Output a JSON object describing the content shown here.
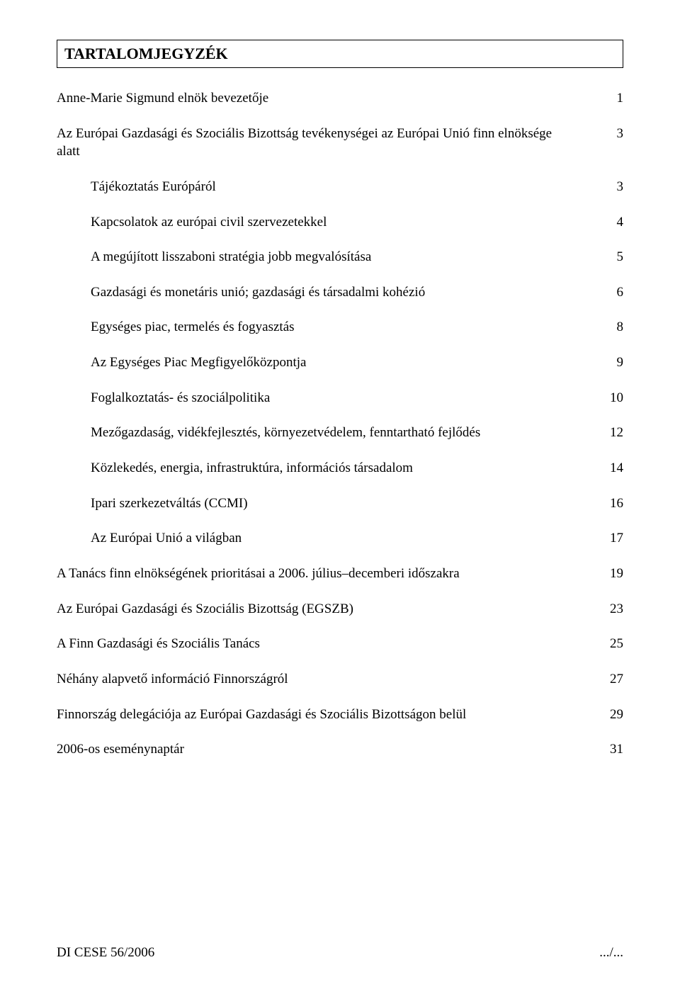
{
  "title": "TARTALOMJEGYZÉK",
  "toc": [
    {
      "label": "Anne-Marie Sigmund elnök bevezetője",
      "page": "1",
      "indent": 0
    },
    {
      "label": "Az Európai Gazdasági és Szociális Bizottság tevékenységei az Európai Unió finn elnöksége alatt",
      "page": "3",
      "indent": 0
    },
    {
      "label": "Tájékoztatás Európáról",
      "page": "3",
      "indent": 1
    },
    {
      "label": "Kapcsolatok az európai civil szervezetekkel",
      "page": "4",
      "indent": 1
    },
    {
      "label": "A megújított lisszaboni stratégia jobb megvalósítása",
      "page": "5",
      "indent": 1
    },
    {
      "label": "Gazdasági és monetáris unió; gazdasági és társadalmi kohézió",
      "page": "6",
      "indent": 1
    },
    {
      "label": "Egységes piac, termelés és fogyasztás",
      "page": "8",
      "indent": 1
    },
    {
      "label": "Az Egységes Piac Megfigyelőközpontja",
      "page": "9",
      "indent": 1
    },
    {
      "label": "Foglalkoztatás- és szociálpolitika",
      "page": "10",
      "indent": 1
    },
    {
      "label": "Mezőgazdaság, vidékfejlesztés, környezetvédelem, fenntartható fejlődés",
      "page": "12",
      "indent": 1
    },
    {
      "label": "Közlekedés, energia, infrastruktúra, információs társadalom",
      "page": "14",
      "indent": 1
    },
    {
      "label": "Ipari szerkezetváltás (CCMI)",
      "page": "16",
      "indent": 1
    },
    {
      "label": "Az Európai Unió a világban",
      "page": "17",
      "indent": 1
    },
    {
      "label": "A Tanács finn elnökségének prioritásai a 2006. július–decemberi időszakra",
      "page": "19",
      "indent": 0
    },
    {
      "label": "Az Európai Gazdasági és Szociális Bizottság (EGSZB)",
      "page": "23",
      "indent": 0
    },
    {
      "label": "A Finn Gazdasági és Szociális Tanács",
      "page": "25",
      "indent": 0
    },
    {
      "label": "Néhány alapvető információ Finnországról",
      "page": "27",
      "indent": 0
    },
    {
      "label": "Finnország delegációja az Európai Gazdasági és Szociális Bizottságon belül",
      "page": "29",
      "indent": 0
    },
    {
      "label": "2006-os eseménynaptár",
      "page": "31",
      "indent": 0
    }
  ],
  "footer_left": "DI CESE 56/2006",
  "footer_right": ".../..."
}
